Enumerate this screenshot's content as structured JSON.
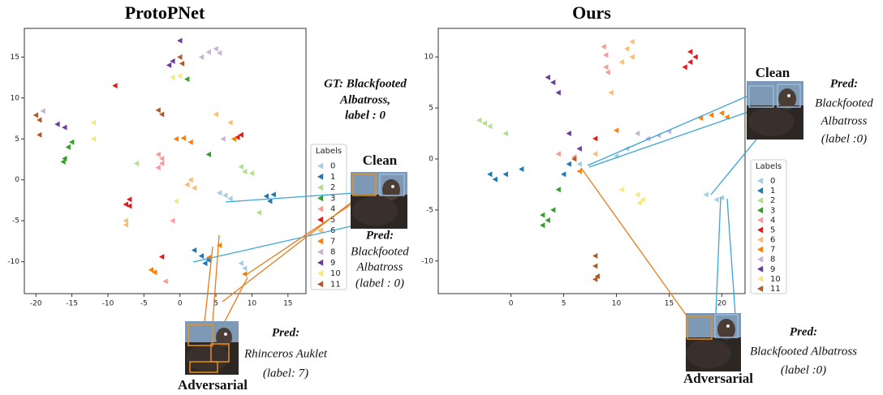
{
  "chart_data": [
    {
      "type": "scatter",
      "title": "ProtoPNet",
      "legend_title": "Labels",
      "legend": "right",
      "xlim": [
        -21.6,
        17.5
      ],
      "ylim": [
        -13.9,
        18.5
      ],
      "xticks": [
        -20,
        -15,
        -10,
        -5,
        0,
        5,
        10,
        15
      ],
      "yticks": [
        -10,
        -5,
        0,
        5,
        10,
        15
      ],
      "series": [
        {
          "name": "0",
          "color": "#a6cee3",
          "x": [
            5.5,
            6.3,
            7,
            8.5,
            9
          ],
          "values": [
            -1.6,
            -1.9,
            -2.3,
            -10.2,
            -10.8
          ]
        },
        {
          "name": "1",
          "color": "#1f78b4",
          "x": [
            12,
            12.5,
            13,
            3,
            4,
            3.5,
            2
          ],
          "values": [
            -2,
            -2.6,
            -1.8,
            -9.3,
            -9.8,
            -10.2,
            -8.6
          ]
        },
        {
          "name": "2",
          "color": "#b2df8a",
          "x": [
            8.5,
            9,
            10,
            11,
            -6
          ],
          "values": [
            1.6,
            1,
            0.8,
            -4,
            2
          ]
        },
        {
          "name": "3",
          "color": "#33a02c",
          "x": [
            -15,
            -15.5,
            -16,
            -16.2,
            1,
            4
          ],
          "values": [
            4.6,
            4,
            2.6,
            2.2,
            12.3,
            3.1
          ]
        },
        {
          "name": "4",
          "color": "#fb9a99",
          "x": [
            -3,
            -2.5,
            -3,
            -1,
            -2,
            -2.5
          ],
          "values": [
            3.1,
            2.6,
            1.5,
            -5,
            -12.4,
            2
          ]
        },
        {
          "name": "5",
          "color": "#e31a1c",
          "x": [
            -7,
            -7.5,
            -7,
            -9,
            8,
            8.5,
            -2.5
          ],
          "values": [
            -2.4,
            -3,
            -3.2,
            11.5,
            5.2,
            5.5,
            -9.4
          ]
        },
        {
          "name": "6",
          "color": "#fdbf6f",
          "x": [
            1,
            2,
            1.5,
            -7.5,
            -7.5,
            5,
            7
          ],
          "values": [
            -0.6,
            -1,
            0,
            -5,
            -5.5,
            8,
            7
          ]
        },
        {
          "name": "7",
          "color": "#ff7f00",
          "x": [
            -0.5,
            0.5,
            1.5,
            7.5,
            -4,
            -3.5,
            4,
            5.5,
            9
          ],
          "values": [
            5,
            5.1,
            4.6,
            5,
            -11,
            -11.3,
            -9.5,
            -8,
            -11.5
          ]
        },
        {
          "name": "8",
          "color": "#cab2d6",
          "x": [
            3,
            4,
            5,
            5.5,
            -19,
            6
          ],
          "values": [
            15,
            15.6,
            16,
            15.5,
            8.4,
            5
          ]
        },
        {
          "name": "9",
          "color": "#6a3d9a",
          "x": [
            -17,
            -16,
            0,
            -1.5,
            -1
          ],
          "values": [
            6.8,
            6.4,
            17,
            14,
            14.5
          ]
        },
        {
          "name": "10",
          "color": "#f3ea7a",
          "x": [
            -1,
            0,
            -12,
            -12,
            -0.5
          ],
          "values": [
            12.5,
            12.7,
            7,
            5,
            -2.6
          ]
        },
        {
          "name": "11",
          "color": "#b15928",
          "x": [
            -20,
            -19.5,
            -3,
            -2.5,
            0,
            0.3,
            -19.5
          ],
          "values": [
            7.9,
            7.3,
            8.5,
            8,
            15,
            14.2,
            5.5
          ]
        }
      ],
      "annotations": [
        "GT: Blackfooted",
        "Albatross,",
        "label : 0",
        "Clean",
        "Pred:",
        "Blackfooted",
        "Albatross",
        "(label : 0)",
        "Pred:",
        "Rhinceros Auklet",
        "(label: 7)",
        "Adversarial"
      ]
    },
    {
      "type": "scatter",
      "title": "Ours",
      "legend_title": "Labels",
      "legend": "right",
      "xlim": [
        -6.9,
        22.2
      ],
      "ylim": [
        -13.2,
        12.8
      ],
      "xticks": [
        0,
        5,
        10,
        15,
        20
      ],
      "yticks": [
        -10,
        -5,
        0,
        5,
        10
      ],
      "series": [
        {
          "name": "0",
          "color": "#a6cee3",
          "x": [
            10,
            18.5,
            19.5,
            20,
            11,
            6.5
          ],
          "values": [
            0.3,
            -3.5,
            -4,
            -3.8,
            1,
            -0.5
          ]
        },
        {
          "name": "1",
          "color": "#1f78b4",
          "x": [
            -2,
            -1.5,
            -0.5,
            1,
            5,
            5.5
          ],
          "values": [
            -1.5,
            -2,
            -1.5,
            -1,
            -1.5,
            -0.5
          ]
        },
        {
          "name": "2",
          "color": "#b2df8a",
          "x": [
            -3,
            -2.5,
            -2,
            -0.5
          ],
          "values": [
            3.8,
            3.5,
            3.2,
            2.5
          ]
        },
        {
          "name": "3",
          "color": "#33a02c",
          "x": [
            3,
            3.5,
            3,
            4.5,
            4
          ],
          "values": [
            -5.5,
            -6,
            -6.5,
            -3,
            -5
          ]
        },
        {
          "name": "4",
          "color": "#fb9a99",
          "x": [
            8.8,
            9,
            9,
            9.2,
            4.5,
            6
          ],
          "values": [
            11,
            10.2,
            9,
            8.5,
            0.5,
            0.2
          ]
        },
        {
          "name": "5",
          "color": "#e31a1c",
          "x": [
            17,
            17.5,
            17,
            16.5,
            8
          ],
          "values": [
            10.5,
            10,
            9.5,
            9,
            2
          ]
        },
        {
          "name": "6",
          "color": "#fdbf6f",
          "x": [
            9.5,
            10.5,
            11.5,
            11,
            11.5,
            8
          ],
          "values": [
            6.5,
            9.5,
            11.5,
            10.8,
            10,
            0.5
          ]
        },
        {
          "name": "7",
          "color": "#ff7f00",
          "x": [
            18,
            19,
            20,
            20.5,
            10,
            6.5
          ],
          "values": [
            4,
            4.3,
            4.5,
            4.1,
            2.8,
            -1.2
          ]
        },
        {
          "name": "8",
          "color": "#cab2d6",
          "x": [
            12,
            13,
            14,
            15
          ],
          "values": [
            2.5,
            2,
            2.3,
            2.7
          ]
        },
        {
          "name": "9",
          "color": "#6a3d9a",
          "x": [
            3.5,
            4,
            4.5,
            5.5,
            6.5
          ],
          "values": [
            8,
            7.5,
            6.5,
            2.5,
            1
          ]
        },
        {
          "name": "10",
          "color": "#f3ea7a",
          "x": [
            10.5,
            12,
            12.5,
            12.2
          ],
          "values": [
            -3,
            -3.5,
            -4,
            -4.3
          ]
        },
        {
          "name": "11",
          "color": "#b15928",
          "x": [
            8,
            8,
            8.2,
            8,
            6
          ],
          "values": [
            -9.5,
            -10.5,
            -11.5,
            -11.8,
            0
          ]
        }
      ],
      "annotations": [
        "Clean",
        "Pred:",
        "Blackfooted",
        "Albatross",
        "(label :0)",
        "Pred:",
        "Blackfooted Albatross",
        "(label :0)",
        "Adversarial"
      ]
    }
  ]
}
